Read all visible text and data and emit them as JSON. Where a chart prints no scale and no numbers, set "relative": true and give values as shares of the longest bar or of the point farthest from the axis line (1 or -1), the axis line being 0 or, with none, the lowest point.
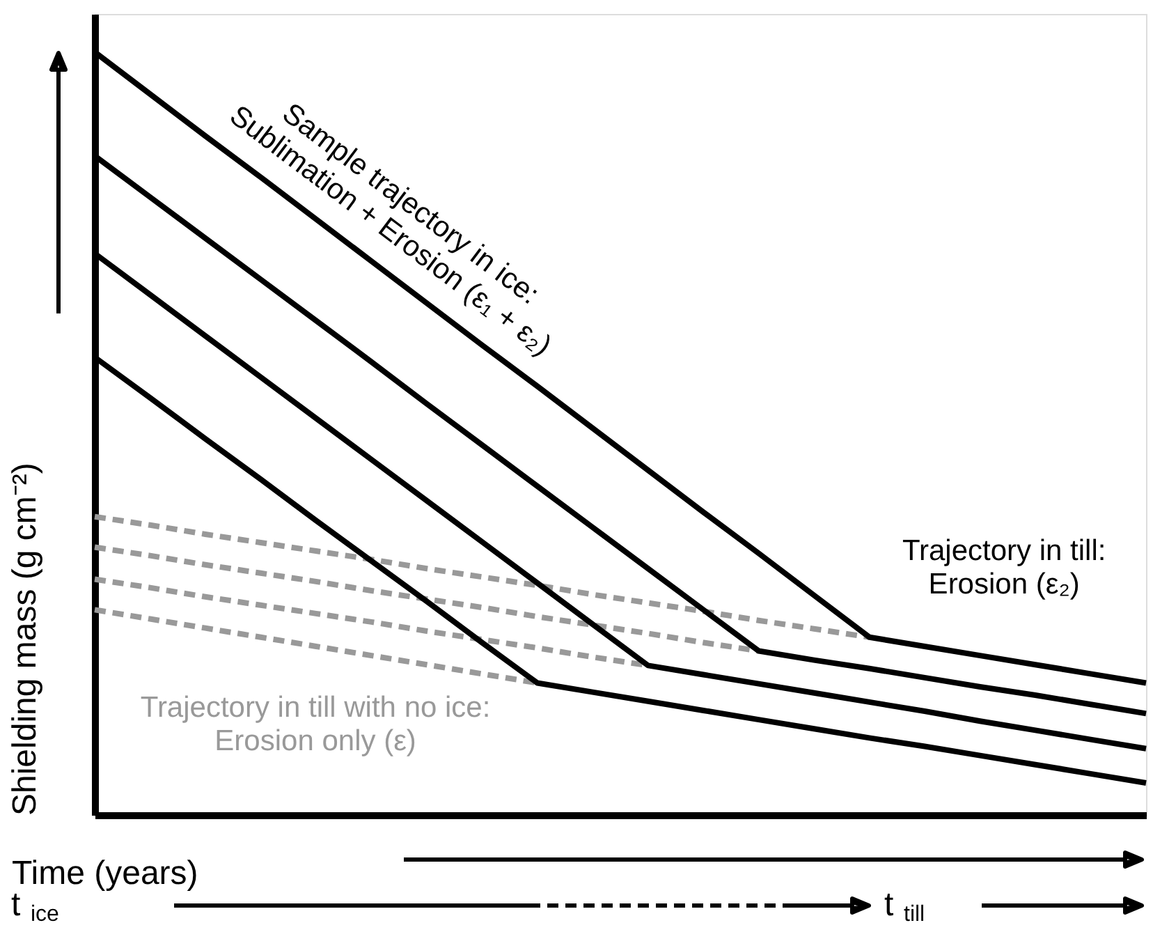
{
  "chart_data": {
    "type": "line",
    "relative": true,
    "tick_labels": false,
    "grid": false,
    "xlabel": "Time (years)",
    "ylabel": "Shielding mass (g cm⁻²)",
    "categories": [
      null,
      null,
      null,
      null,
      null,
      null,
      null,
      null,
      null,
      null,
      null,
      null,
      null,
      null,
      null,
      null,
      null,
      null,
      null,
      null
    ],
    "series": [
      {
        "color": "#000000",
        "line_style": "solid",
        "values": [
          1,
          0.945,
          0.89,
          0.836,
          0.781,
          0.726,
          0.671,
          0.616,
          0.562,
          0.507,
          0.452,
          0.397,
          0.343,
          0.288,
          0.233,
          0.221,
          0.209,
          0.197,
          0.185,
          0.173
        ]
      },
      {
        "color": "#000000",
        "line_style": "solid",
        "values": [
          0.864,
          0.81,
          0.756,
          0.702,
          0.648,
          0.594,
          0.539,
          0.485,
          0.431,
          0.377,
          0.323,
          0.269,
          0.215,
          0.203,
          0.192,
          0.18,
          0.168,
          0.157,
          0.145,
          0.133
        ]
      },
      {
        "color": "#000000",
        "line_style": "solid",
        "values": [
          0.736,
          0.682,
          0.628,
          0.574,
          0.52,
          0.466,
          0.412,
          0.358,
          0.304,
          0.25,
          0.196,
          0.184,
          0.172,
          0.16,
          0.148,
          0.136,
          0.123,
          0.111,
          0.099,
          0.087
        ]
      },
      {
        "color": "#000000",
        "line_style": "solid",
        "values": [
          0.6,
          0.547,
          0.493,
          0.44,
          0.386,
          0.333,
          0.28,
          0.226,
          0.173,
          0.161,
          0.149,
          0.137,
          0.125,
          0.113,
          0.101,
          0.09,
          0.078,
          0.066,
          0.054,
          0.042
        ]
      },
      {
        "color": "#999999",
        "line_style": "dashed",
        "values": [
          0.391,
          0.38,
          0.368,
          0.357,
          0.346,
          0.335,
          0.323,
          0.312,
          0.301,
          0.289,
          0.278,
          0.267,
          0.255,
          0.244,
          0.233,
          null,
          null,
          null,
          null,
          null
        ]
      },
      {
        "color": "#999999",
        "line_style": "dashed",
        "values": [
          0.351,
          0.34,
          0.328,
          0.317,
          0.306,
          0.294,
          0.283,
          0.272,
          0.26,
          0.249,
          0.238,
          0.226,
          0.215,
          null,
          null,
          null,
          null,
          null,
          null,
          null
        ]
      },
      {
        "color": "#999999",
        "line_style": "dashed",
        "values": [
          0.309,
          0.298,
          0.286,
          0.275,
          0.264,
          0.253,
          0.241,
          0.23,
          0.219,
          0.207,
          0.196,
          null,
          null,
          null,
          null,
          null,
          null,
          null,
          null,
          null
        ]
      },
      {
        "color": "#999999",
        "line_style": "dashed",
        "values": [
          0.269,
          0.257,
          0.245,
          0.233,
          0.221,
          0.209,
          0.197,
          0.185,
          0.173,
          null,
          null,
          null,
          null,
          null,
          null,
          null,
          null,
          null,
          null,
          null
        ]
      }
    ],
    "annotations": [
      "Sample trajectory in ice:\nSublimation + Erosion (ε₁ + ε₂)",
      "Trajectory in till:\nErosion (ε₂)",
      "Trajectory in till with no ice:\nErosion only (ε)",
      "t$_{ice}$",
      "t$_{till}$"
    ]
  }
}
